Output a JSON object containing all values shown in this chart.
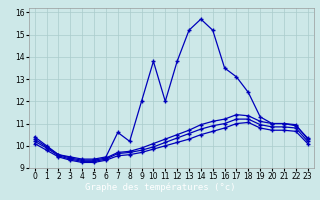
{
  "xlabel": "Graphe des températures (°c)",
  "xlim": [
    -0.5,
    23.5
  ],
  "ylim": [
    9.0,
    16.2
  ],
  "yticks": [
    9,
    10,
    11,
    12,
    13,
    14,
    15,
    16
  ],
  "xticks": [
    0,
    1,
    2,
    3,
    4,
    5,
    6,
    7,
    8,
    9,
    10,
    11,
    12,
    13,
    14,
    15,
    16,
    17,
    18,
    19,
    20,
    21,
    22,
    23
  ],
  "bg_color": "#cde8e8",
  "grid_color": "#aacccc",
  "line_color": "#0000bb",
  "line1_x": [
    0,
    1,
    2,
    3,
    4,
    5,
    6,
    7,
    8,
    9,
    10,
    11,
    12,
    13,
    14,
    15,
    16,
    17,
    18,
    19,
    20,
    21,
    22,
    23
  ],
  "line1_y": [
    10.4,
    10.0,
    9.6,
    9.5,
    9.4,
    9.4,
    9.5,
    10.6,
    10.2,
    12.0,
    13.8,
    12.0,
    13.8,
    15.2,
    15.7,
    15.2,
    13.5,
    13.1,
    12.4,
    11.3,
    11.0,
    11.0,
    10.9,
    10.35
  ],
  "line2_x": [
    0,
    1,
    2,
    3,
    4,
    5,
    6,
    7,
    8,
    9,
    10,
    11,
    12,
    13,
    14,
    15,
    16,
    17,
    18,
    19,
    20,
    21,
    22,
    23
  ],
  "line2_y": [
    10.3,
    9.95,
    9.6,
    9.45,
    9.35,
    9.35,
    9.45,
    9.7,
    9.75,
    9.9,
    10.1,
    10.3,
    10.5,
    10.7,
    10.95,
    11.1,
    11.2,
    11.4,
    11.35,
    11.1,
    11.0,
    11.0,
    10.95,
    10.3
  ],
  "line3_x": [
    0,
    1,
    2,
    3,
    4,
    5,
    6,
    7,
    8,
    9,
    10,
    11,
    12,
    13,
    14,
    15,
    16,
    17,
    18,
    19,
    20,
    21,
    22,
    23
  ],
  "line3_y": [
    10.2,
    9.9,
    9.55,
    9.4,
    9.3,
    9.3,
    9.4,
    9.65,
    9.7,
    9.8,
    9.95,
    10.15,
    10.35,
    10.55,
    10.75,
    10.9,
    11.0,
    11.2,
    11.2,
    10.95,
    10.85,
    10.85,
    10.8,
    10.2
  ],
  "line4_x": [
    0,
    1,
    2,
    3,
    4,
    5,
    6,
    7,
    8,
    9,
    10,
    11,
    12,
    13,
    14,
    15,
    16,
    17,
    18,
    19,
    20,
    21,
    22,
    23
  ],
  "line4_y": [
    10.1,
    9.8,
    9.5,
    9.35,
    9.25,
    9.25,
    9.35,
    9.55,
    9.6,
    9.7,
    9.85,
    10.0,
    10.15,
    10.3,
    10.5,
    10.65,
    10.8,
    11.0,
    11.05,
    10.8,
    10.7,
    10.7,
    10.65,
    10.1
  ],
  "label_bar_color": "#0000aa",
  "label_text_color": "#ffffff",
  "label_fontsize": 6.5,
  "tick_fontsize": 5.5
}
